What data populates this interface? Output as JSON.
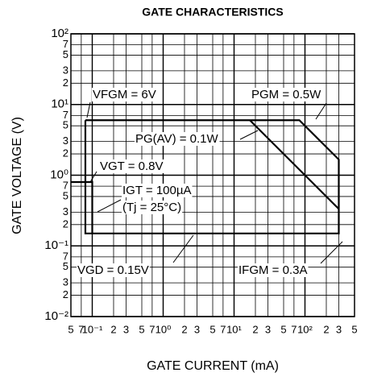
{
  "chart_data": {
    "type": "line",
    "title": "GATE CHARACTERISTICS",
    "xlabel": "GATE CURRENT  (mA)",
    "ylabel": "GATE VOLTAGE  (V)",
    "xscale": "log",
    "yscale": "log",
    "grid": true,
    "color": "#000000",
    "xlim": [
      0.05,
      500
    ],
    "ylim": [
      0.01,
      100
    ],
    "xticks": [
      {
        "value": 0.05,
        "label": "5"
      },
      {
        "value": 0.07,
        "label": "7"
      },
      {
        "value": 0.1,
        "label": "10⁻¹"
      },
      {
        "value": 0.2,
        "label": "2"
      },
      {
        "value": 0.3,
        "label": "3"
      },
      {
        "value": 0.5,
        "label": "5"
      },
      {
        "value": 0.7,
        "label": "7"
      },
      {
        "value": 1,
        "label": "10⁰"
      },
      2,
      3,
      5,
      7,
      {
        "value": 10,
        "label": "10¹"
      },
      {
        "value": 20,
        "label": "2"
      },
      {
        "value": 30,
        "label": "3"
      },
      {
        "value": 50,
        "label": "5"
      },
      {
        "value": 70,
        "label": "7"
      },
      {
        "value": 100,
        "label": "10²"
      },
      {
        "value": 200,
        "label": "2"
      },
      {
        "value": 300,
        "label": "3"
      },
      {
        "value": 500,
        "label": "5"
      }
    ],
    "yticks": [
      {
        "value": 0.01,
        "label": "10⁻²"
      },
      {
        "value": 0.02,
        "label": "2"
      },
      {
        "value": 0.03,
        "label": "3"
      },
      {
        "value": 0.05,
        "label": "5"
      },
      {
        "value": 0.07,
        "label": "7"
      },
      {
        "value": 0.1,
        "label": "10⁻¹"
      },
      {
        "value": 0.2,
        "label": "2"
      },
      {
        "value": 0.3,
        "label": "3"
      },
      {
        "value": 0.5,
        "label": "5"
      },
      {
        "value": 0.7,
        "label": "7"
      },
      {
        "value": 1,
        "label": "10⁰"
      },
      2,
      3,
      5,
      7,
      {
        "value": 10,
        "label": "10¹"
      },
      {
        "value": 20,
        "label": "2"
      },
      {
        "value": 30,
        "label": "3"
      },
      {
        "value": 50,
        "label": "5"
      },
      {
        "value": 70,
        "label": "7"
      },
      {
        "value": 100,
        "label": "10²"
      }
    ],
    "series": [
      {
        "x": [
          0.08,
          83.3,
          300,
          300,
          0.08,
          0.08
        ],
        "values": [
          6,
          6,
          1.667,
          0.15,
          0.15,
          6
        ]
      },
      {
        "x": [
          16.7,
          300
        ],
        "values": [
          6,
          0.333
        ]
      },
      {
        "x": [
          0.05,
          0.1,
          0.1
        ],
        "values": [
          0.8,
          0.8,
          0.15
        ]
      }
    ],
    "annotations": [
      "VFGM = 6V",
      "PGM = 0.5W",
      "PG(AV) = 0.1W",
      "VGT = 0.8V",
      "IGT = 100µA",
      "(Tj = 25°C)",
      "VGD = 0.15V",
      "IFGM = 0.3A"
    ]
  }
}
